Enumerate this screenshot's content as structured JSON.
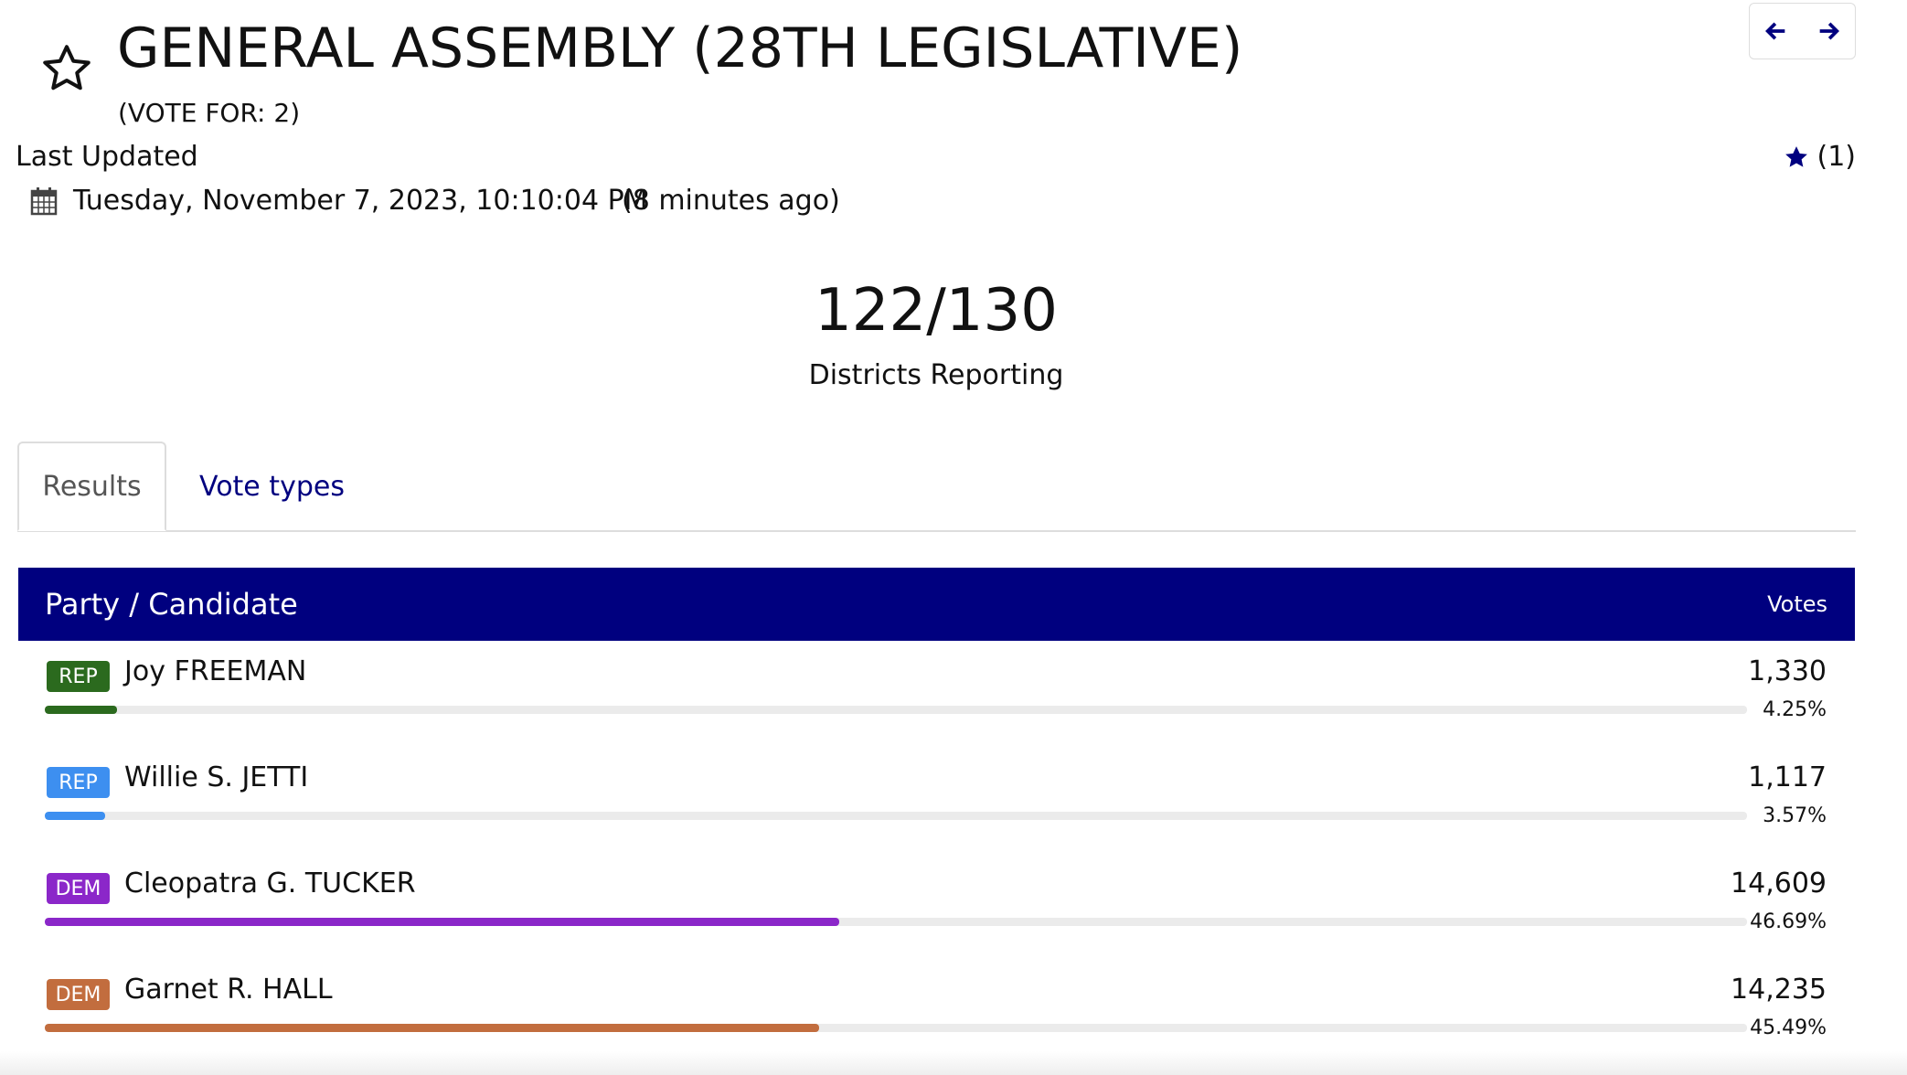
{
  "header": {
    "title": "GENERAL ASSEMBLY (28TH LEGISLATIVE)",
    "vote_for": "(VOTE FOR: 2)",
    "last_updated_label": "Last Updated",
    "last_updated": "Tuesday, November 7, 2023, 10:10:04 PM",
    "relative_time": "(8 minutes ago)",
    "favorites": "(1)"
  },
  "reporting": {
    "count": "122/130",
    "label": "Districts Reporting"
  },
  "tabs": [
    "Results",
    "Vote types"
  ],
  "table": {
    "headers": [
      "Party / Candidate",
      "Votes"
    ],
    "rows": [
      {
        "party": "REP",
        "name": "Joy FREEMAN",
        "votes": "1,330",
        "percent": 4.25,
        "percent_label": "4.25%",
        "color": "#2b6a1e"
      },
      {
        "party": "REP",
        "name": "Willie S. JETTI",
        "votes": "1,117",
        "percent": 3.57,
        "percent_label": "3.57%",
        "color": "#3d8ff0"
      },
      {
        "party": "DEM",
        "name": "Cleopatra G. TUCKER",
        "votes": "14,609",
        "percent": 46.69,
        "percent_label": "46.69%",
        "color": "#8b27c9"
      },
      {
        "party": "DEM",
        "name": "Garnet R. HALL",
        "votes": "14,235",
        "percent": 45.49,
        "percent_label": "45.49%",
        "color": "#c26d3e"
      }
    ]
  }
}
